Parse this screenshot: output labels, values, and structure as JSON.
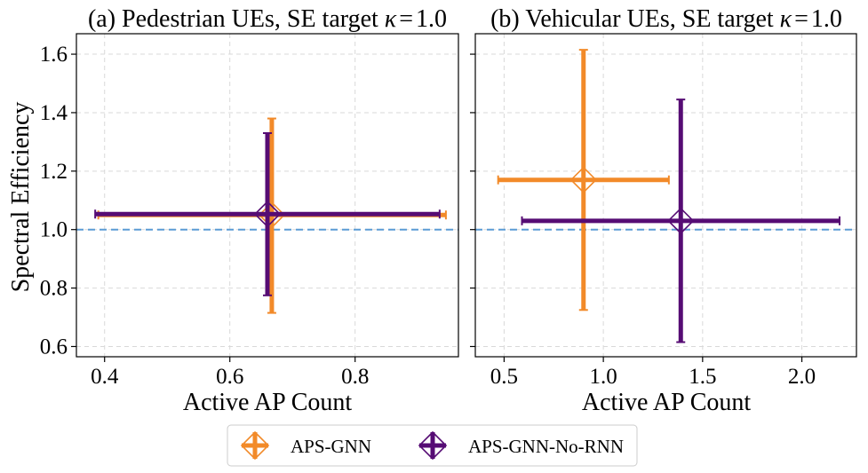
{
  "chart_data": [
    {
      "type": "errorbar",
      "title": "(a) Pedestrian UEs, SE target κ = 1.0",
      "title_parts": {
        "prefix": "(a) Pedestrian UEs, SE target ",
        "kappa": "κ",
        "eq": "=",
        "value": "1.0"
      },
      "xlabel": "Active AP Count",
      "ylabel": "Spectral Efficiency",
      "xlim": [
        0.355,
        0.965
      ],
      "ylim": [
        0.565,
        1.67
      ],
      "xticks": [
        0.4,
        0.6,
        0.8
      ],
      "xtick_labels": [
        "0.4",
        "0.6",
        "0.8"
      ],
      "yticks": [
        0.6,
        0.8,
        1.0,
        1.2,
        1.4,
        1.6
      ],
      "ytick_labels": [
        "0.6",
        "0.8",
        "1.0",
        "1.2",
        "1.4",
        "1.6"
      ],
      "grid": true,
      "reference_line": {
        "y": 1.0,
        "style": "dashed"
      },
      "series": [
        {
          "name": "APS-GNN",
          "x": 0.667,
          "y": 1.05,
          "x_err": [
            0.39,
            0.945
          ],
          "y_err": [
            0.715,
            1.38
          ]
        },
        {
          "name": "APS-GNN-No-RNN",
          "x": 0.66,
          "y": 1.053,
          "x_err": [
            0.385,
            0.935
          ],
          "y_err": [
            0.775,
            1.33
          ]
        }
      ]
    },
    {
      "type": "errorbar",
      "title": "(b) Vehicular UEs, SE target κ = 1.0",
      "title_parts": {
        "prefix": "(b) Vehicular UEs, SE target ",
        "kappa": "κ",
        "eq": "=",
        "value": "1.0"
      },
      "xlabel": "Active AP Count",
      "xlim": [
        0.355,
        2.275
      ],
      "ylim": [
        0.565,
        1.67
      ],
      "xticks": [
        0.5,
        1.0,
        1.5,
        2.0
      ],
      "xtick_labels": [
        "0.5",
        "1.0",
        "1.5",
        "2.0"
      ],
      "yticks": [
        0.6,
        0.8,
        1.0,
        1.2,
        1.4,
        1.6
      ],
      "grid": true,
      "reference_line": {
        "y": 1.0,
        "style": "dashed"
      },
      "series": [
        {
          "name": "APS-GNN",
          "x": 0.9,
          "y": 1.17,
          "x_err": [
            0.47,
            1.33
          ],
          "y_err": [
            0.725,
            1.615
          ]
        },
        {
          "name": "APS-GNN-No-RNN",
          "x": 1.39,
          "y": 1.03,
          "x_err": [
            0.59,
            2.19
          ],
          "y_err": [
            0.615,
            1.445
          ]
        }
      ]
    }
  ],
  "legend": {
    "placement": "bottom-center",
    "entries": [
      {
        "label": "APS-GNN",
        "color": "#f28a29"
      },
      {
        "label": "APS-GNN-No-RNN",
        "color": "#560c74"
      }
    ]
  },
  "colors": {
    "aps_gnn": "#f28a29",
    "aps_gnn_no_rnn": "#560c74",
    "reference": "#5b9bd5",
    "grid": "#d9d9d9"
  }
}
